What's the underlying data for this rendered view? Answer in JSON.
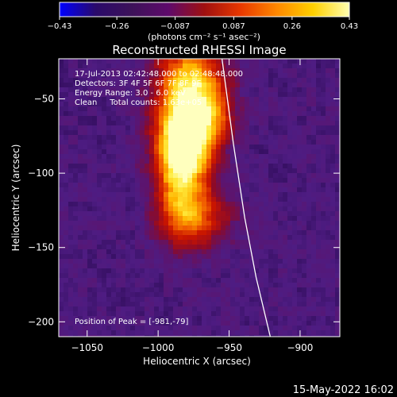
{
  "chart_data": {
    "type": "heatmap",
    "title": "Reconstructed RHESSI Image",
    "xlabel": "Heliocentric X (arcsec)",
    "ylabel": "Heliocentric Y (arcsec)",
    "xlim": [
      -1070,
      -872
    ],
    "ylim": [
      -210,
      -23
    ],
    "xticks": [
      -1050,
      -1000,
      -950,
      -900
    ],
    "xtick_labels": [
      "−1050",
      "−1000",
      "−950",
      "−900"
    ],
    "yticks": [
      -50,
      -100,
      -150,
      -200
    ],
    "ytick_labels": [
      "−50",
      "−100",
      "−150",
      "−200"
    ],
    "colorbar": {
      "min": -0.43,
      "max": 0.43,
      "ticks": [
        -0.43,
        -0.26,
        -0.087,
        0.087,
        0.26,
        0.43
      ],
      "tick_labels": [
        "−0.43",
        "−0.26",
        "−0.087",
        "0.087",
        "0.26",
        "0.43"
      ],
      "unit_label": "(photons cm⁻² s⁻¹ asec⁻²)",
      "colors": [
        "#0000ff",
        "#2a0a6a",
        "#3d1259",
        "#5e0a6b",
        "#a01010",
        "#e83800",
        "#ff8800",
        "#ffd000",
        "#ffffb0"
      ]
    },
    "annotations": [
      "17-Jul-2013 02:42:48.000 to 02:48:48.000",
      "Detectors: 3F 4F 5F 6F 7F 8F 9F",
      "Energy Range: 3.0 - 6.0 keV",
      "Clean     Total counts: 1.63e+05"
    ],
    "peak_label": "Position of Peak = [-981,-79]",
    "peak": [
      -981,
      -79
    ],
    "limb_curve": [
      [
        -955,
        -23
      ],
      [
        -947,
        -80
      ],
      [
        -939,
        -130
      ],
      [
        -931,
        -170
      ],
      [
        -921,
        -210
      ]
    ],
    "sources": [
      {
        "x": -981,
        "y": -79,
        "sx": 14,
        "sy": 18,
        "amp": 1.0
      },
      {
        "x": -978,
        "y": -40,
        "sx": 16,
        "sy": 20,
        "amp": 0.75
      },
      {
        "x": -985,
        "y": -115,
        "sx": 12,
        "sy": 22,
        "amp": 0.55
      },
      {
        "x": -968,
        "y": -130,
        "sx": 16,
        "sy": 14,
        "amp": 0.35
      },
      {
        "x": -960,
        "y": -60,
        "sx": 10,
        "sy": 14,
        "amp": 0.3
      }
    ],
    "background_level": 0.12
  },
  "footer": {
    "date": "15-May-2022 16:02"
  }
}
